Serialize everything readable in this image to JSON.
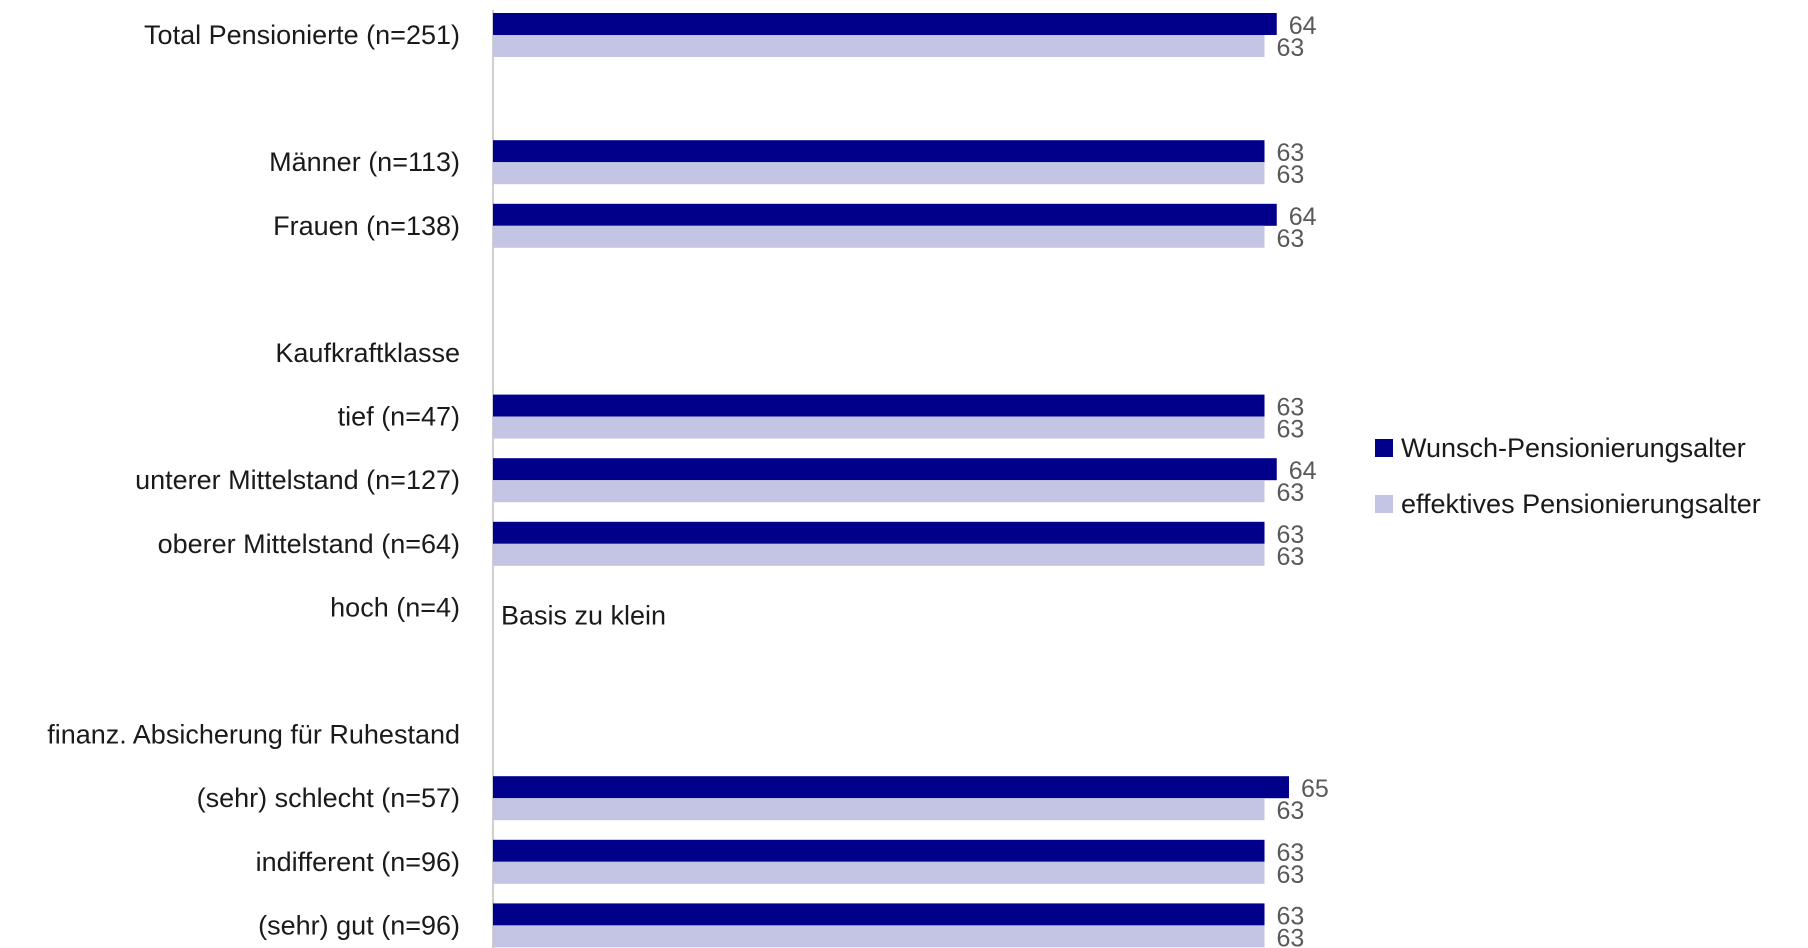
{
  "chart_data": {
    "type": "bar",
    "orientation": "horizontal",
    "title": "",
    "xlabel": "",
    "ylabel": "",
    "xlim": [
      0,
      65
    ],
    "grid": false,
    "legend_position": "right",
    "colors": {
      "Wunsch-Pensionierungsalter": "#00008b",
      "effektives Pensionierungsalter": "#c4c4e4"
    },
    "series": [
      {
        "name": "Wunsch-Pensionierungsalter"
      },
      {
        "name": "effektives Pensionierungsalter"
      }
    ],
    "rows": [
      {
        "label": "Total Pensionierte (n=251)",
        "values": [
          64,
          63
        ],
        "value_labels": [
          "64",
          "63"
        ]
      },
      {
        "label": "",
        "values": null
      },
      {
        "label": "Männer (n=113)",
        "values": [
          63,
          63
        ],
        "value_labels": [
          "63",
          "63"
        ]
      },
      {
        "label": "Frauen (n=138)",
        "values": [
          64,
          63
        ],
        "value_labels": [
          "64",
          "63"
        ]
      },
      {
        "label": "",
        "values": null
      },
      {
        "label": "Kaufkraftklasse",
        "values": null
      },
      {
        "label": "tief (n=47)",
        "values": [
          63,
          63
        ],
        "value_labels": [
          "63",
          "63"
        ]
      },
      {
        "label": "unterer Mittelstand (n=127)",
        "values": [
          64,
          63
        ],
        "value_labels": [
          "64",
          "63"
        ]
      },
      {
        "label": "oberer Mittelstand (n=64)",
        "values": [
          63,
          63
        ],
        "value_labels": [
          "63",
          "63"
        ]
      },
      {
        "label": "hoch (n=4)",
        "values": null,
        "note": "Basis zu klein"
      },
      {
        "label": "",
        "values": null
      },
      {
        "label": "finanz. Absicherung für Ruhestand",
        "values": null
      },
      {
        "label": "(sehr) schlecht (n=57)",
        "values": [
          65,
          63
        ],
        "value_labels": [
          "65",
          "63"
        ]
      },
      {
        "label": "indifferent (n=96)",
        "values": [
          63,
          63
        ],
        "value_labels": [
          "63",
          "63"
        ]
      },
      {
        "label": "(sehr) gut (n=96)",
        "values": [
          63,
          63
        ],
        "value_labels": [
          "63",
          "63"
        ]
      }
    ]
  }
}
